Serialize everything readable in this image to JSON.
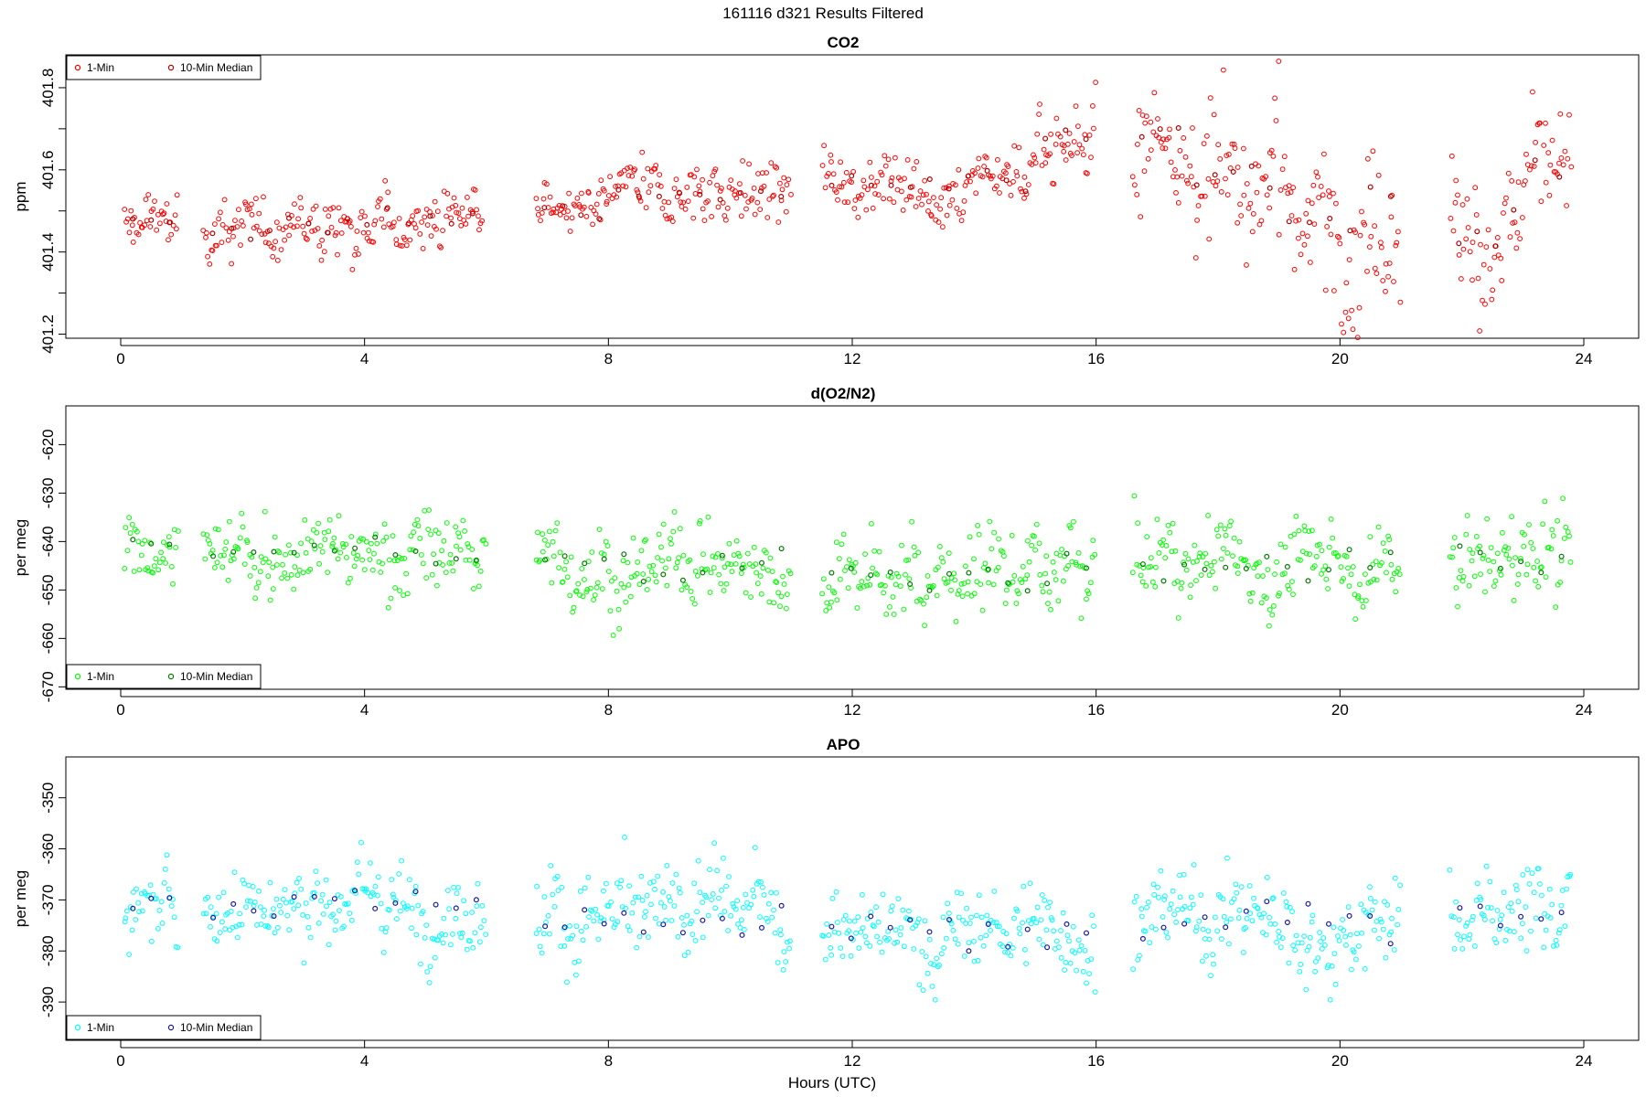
{
  "page_title": "161116    d321    Results Filtered",
  "x_axis_label": "Hours (UTC)",
  "chart_data": [
    {
      "type": "scatter",
      "title": "CO2",
      "ylabel": "ppm",
      "xlim": [
        -0.9,
        24.9
      ],
      "ylim": [
        401.19,
        401.88
      ],
      "xticks": [
        0,
        4,
        8,
        12,
        16,
        20,
        24
      ],
      "yticks": [
        401.2,
        401.4,
        401.6,
        401.8
      ],
      "grid": false,
      "legend_position": "top-left",
      "colors": {
        "raw": "#ff0000",
        "median": "#b00000"
      },
      "series": [
        {
          "name": "1-Min",
          "segments": [
            [
              0.05,
              0.95,
              401.47,
              0.05
            ],
            [
              1.35,
              2.6,
              401.45,
              0.055
            ],
            [
              2.6,
              4.2,
              401.46,
              0.06
            ],
            [
              4.2,
              5.95,
              401.48,
              0.06
            ],
            [
              6.8,
              8.0,
              401.5,
              0.045
            ],
            [
              8.0,
              11.0,
              401.54,
              0.06
            ],
            [
              11.5,
              12.8,
              401.58,
              0.065
            ],
            [
              12.8,
              15.0,
              401.57,
              0.06
            ],
            [
              15.0,
              16.0,
              401.68,
              0.08
            ],
            [
              16.6,
              17.5,
              401.68,
              0.11
            ],
            [
              17.5,
              19.0,
              401.58,
              0.14
            ],
            [
              19.0,
              21.0,
              401.5,
              0.14
            ],
            [
              21.8,
              23.0,
              401.45,
              0.15
            ],
            [
              23.0,
              23.8,
              401.6,
              0.1
            ]
          ],
          "n_per_hour": 40
        },
        {
          "name": "10-Min Median"
        }
      ]
    },
    {
      "type": "scatter",
      "title": "d(O2/N2)",
      "ylabel": "per meg",
      "xlim": [
        -0.9,
        24.9
      ],
      "ylim": [
        -670.5,
        -612
      ],
      "xticks": [
        0,
        4,
        8,
        12,
        16,
        20,
        24
      ],
      "yticks": [
        -670,
        -660,
        -650,
        -640,
        -630,
        -620
      ],
      "grid": false,
      "legend_position": "bottom-left",
      "colors": {
        "raw": "#00ff00",
        "median": "#007a00"
      },
      "series": [
        {
          "name": "1-Min",
          "segments": [
            [
              0.05,
              0.95,
              -641,
              5
            ],
            [
              1.35,
              6.0,
              -642,
              6
            ],
            [
              6.8,
              11.0,
              -645,
              7
            ],
            [
              11.5,
              16.0,
              -647,
              7
            ],
            [
              16.6,
              21.0,
              -645,
              7
            ],
            [
              21.8,
              23.8,
              -643,
              8
            ]
          ],
          "n_per_hour": 40
        },
        {
          "name": "10-Min Median"
        }
      ]
    },
    {
      "type": "scatter",
      "title": "APO",
      "ylabel": "per meg",
      "xlim": [
        -0.9,
        24.9
      ],
      "ylim": [
        -397.5,
        -342
      ],
      "xticks": [
        0,
        4,
        8,
        12,
        16,
        20,
        24
      ],
      "yticks": [
        -390,
        -380,
        -370,
        -360,
        -350
      ],
      "grid": false,
      "legend_position": "bottom-left",
      "colors": {
        "raw": "#00ffff",
        "median": "#1a1aa0"
      },
      "series": [
        {
          "name": "1-Min",
          "segments": [
            [
              0.05,
              0.95,
              -371,
              5
            ],
            [
              1.35,
              6.0,
              -371,
              6
            ],
            [
              6.8,
              11.0,
              -374,
              7
            ],
            [
              11.5,
              16.0,
              -376,
              6
            ],
            [
              16.6,
              21.0,
              -374,
              7
            ],
            [
              21.8,
              23.8,
              -373,
              7
            ]
          ],
          "n_per_hour": 40
        },
        {
          "name": "10-Min Median"
        }
      ]
    }
  ]
}
